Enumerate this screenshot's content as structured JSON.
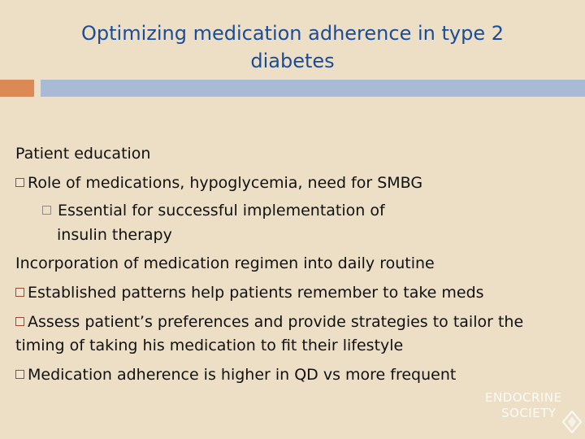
{
  "slide": {
    "title": "Optimizing medication adherence in type 2 diabetes",
    "body": [
      {
        "text": "Patient education",
        "level": 0,
        "bullet": false
      },
      {
        "text": "Role of medications, hypoglycemia, need for SMBG",
        "level": 1,
        "bullet": true
      },
      {
        "text": "Essential for successful implementation of",
        "level": 2,
        "bullet": true
      },
      {
        "text": "insulin therapy",
        "level": 2,
        "bullet": false
      },
      {
        "text": "Incorporation of medication regimen into daily routine",
        "level": 0,
        "bullet": false
      },
      {
        "text": "Established patterns help patients remember to take  meds",
        "level": 1,
        "bullet": true
      },
      {
        "text": "Assess patient’s preferences and provide strategies to tailor the",
        "level": 1,
        "bullet": true
      },
      {
        "text": "timing of taking his medication to fit their lifestyle",
        "level": 1,
        "bullet": false
      },
      {
        "text": "Medication adherence is higher in QD vs more frequent",
        "level": 1,
        "bullet": true
      }
    ],
    "logo": {
      "line1": "ENDOCRINE",
      "line2": "SOCIETY"
    },
    "colors": {
      "title": "#1a4c99",
      "accent_orange": "#dc8a55",
      "accent_blue": "#a8bad4",
      "background": "#ecdfc6",
      "bullet": "#a14a25"
    }
  }
}
